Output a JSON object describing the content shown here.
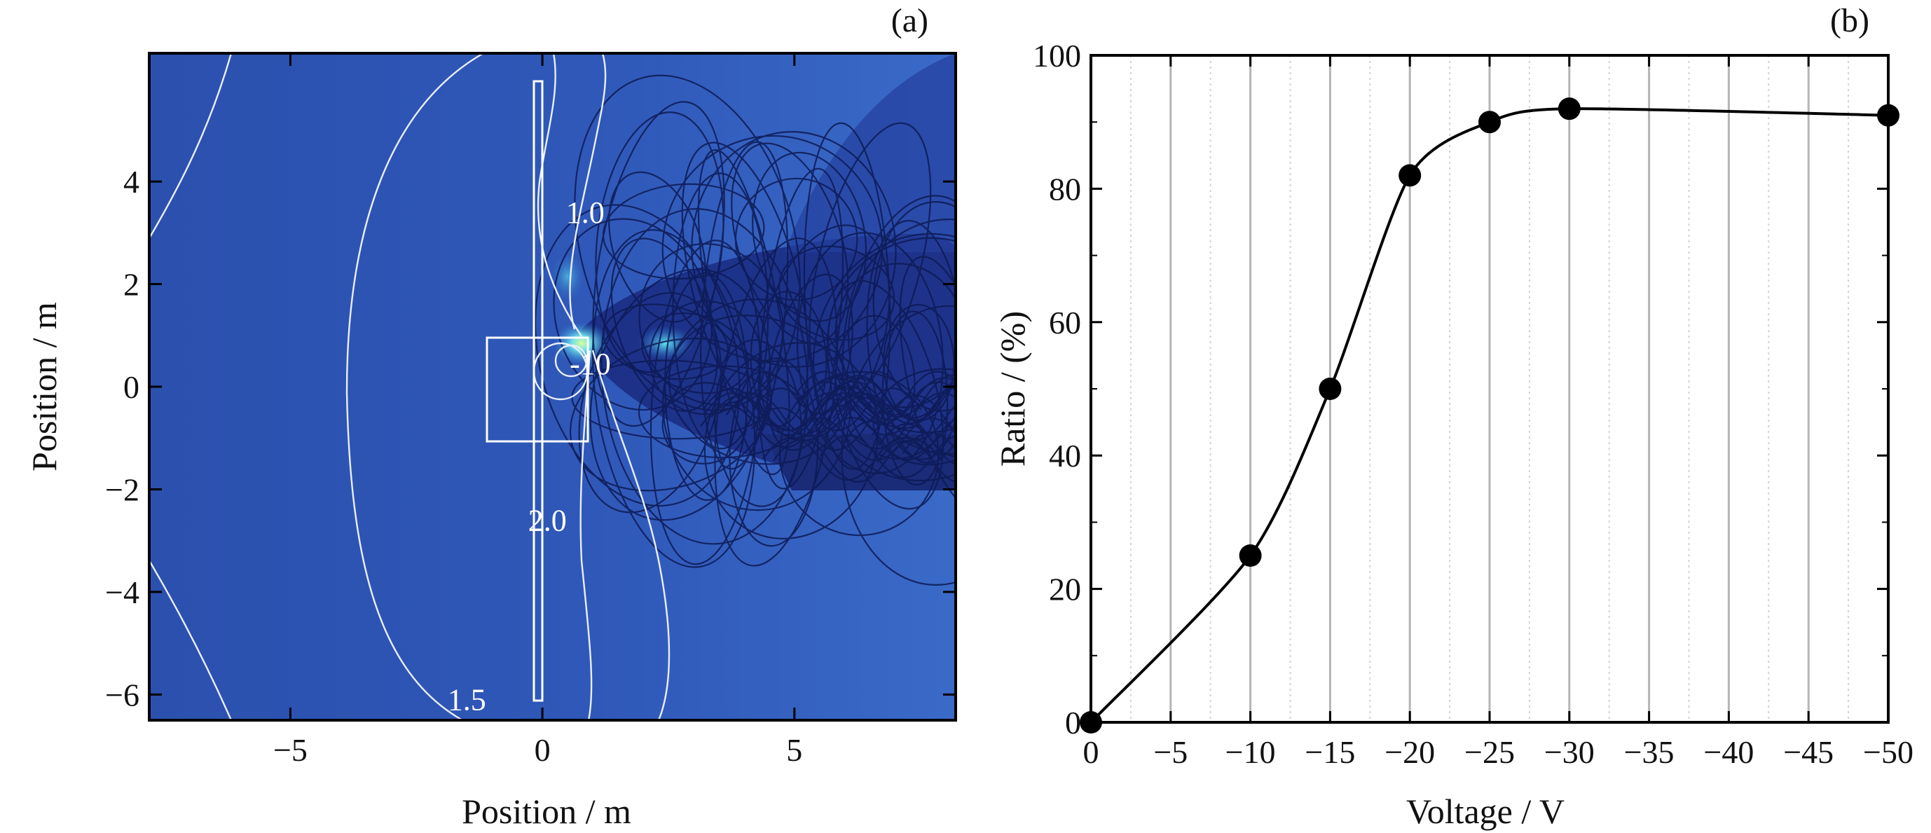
{
  "panel_labels": {
    "a": "(a)",
    "b": "(b)"
  },
  "colors": {
    "field_background": "#2f56b4",
    "field_dark": "#1a2e7a",
    "contour": "#e8eefc",
    "trajectories": "#0d1a55",
    "line": "#000000",
    "marker": "#000000",
    "grid": "#b5b5b5"
  },
  "chart_data": [
    {
      "type": "heatmap",
      "panel": "(a)",
      "xlabel": "Position / m",
      "ylabel": "Position / m",
      "xlim": [
        -7.8,
        8.2
      ],
      "ylim": [
        -6.5,
        6.5
      ],
      "x_ticks": [
        -5,
        0,
        5
      ],
      "x_tick_labels": [
        "−5",
        "0",
        "5"
      ],
      "y_ticks": [
        4,
        2,
        0,
        -2,
        -4,
        -6
      ],
      "y_tick_labels": [
        "4",
        "2",
        "0",
        "−2",
        "−4",
        "−6"
      ],
      "contour_labels": [
        {
          "text": "1.0",
          "x": 0.85,
          "y": 3.4
        },
        {
          "text": "-10",
          "x": 0.95,
          "y": 0.45
        },
        {
          "text": "2.0",
          "x": 0.1,
          "y": -2.6
        },
        {
          "text": "1.5",
          "x": -1.5,
          "y": -6.1
        }
      ],
      "grid": false,
      "legend": "none"
    },
    {
      "type": "line",
      "panel": "(b)",
      "xlabel": "Voltage / V",
      "ylabel": "Ratio / (%)",
      "xlim": [
        0,
        -50
      ],
      "ylim": [
        0,
        100
      ],
      "x_ticks": [
        0,
        -5,
        -10,
        -15,
        -20,
        -25,
        -30,
        -35,
        -40,
        -45,
        -50
      ],
      "x_tick_labels": [
        "0",
        "−5",
        "−10",
        "−15",
        "−20",
        "−25",
        "−30",
        "−35",
        "−40",
        "−45",
        "−50"
      ],
      "y_ticks": [
        0,
        20,
        40,
        60,
        80,
        100
      ],
      "y_tick_labels": [
        "0",
        "20",
        "40",
        "60",
        "80",
        "100"
      ],
      "x": [
        0,
        -10,
        -15,
        -20,
        -25,
        -30,
        -50
      ],
      "values": [
        0,
        25,
        50,
        82,
        90,
        92,
        91
      ],
      "grid": true,
      "legend": "none"
    }
  ]
}
